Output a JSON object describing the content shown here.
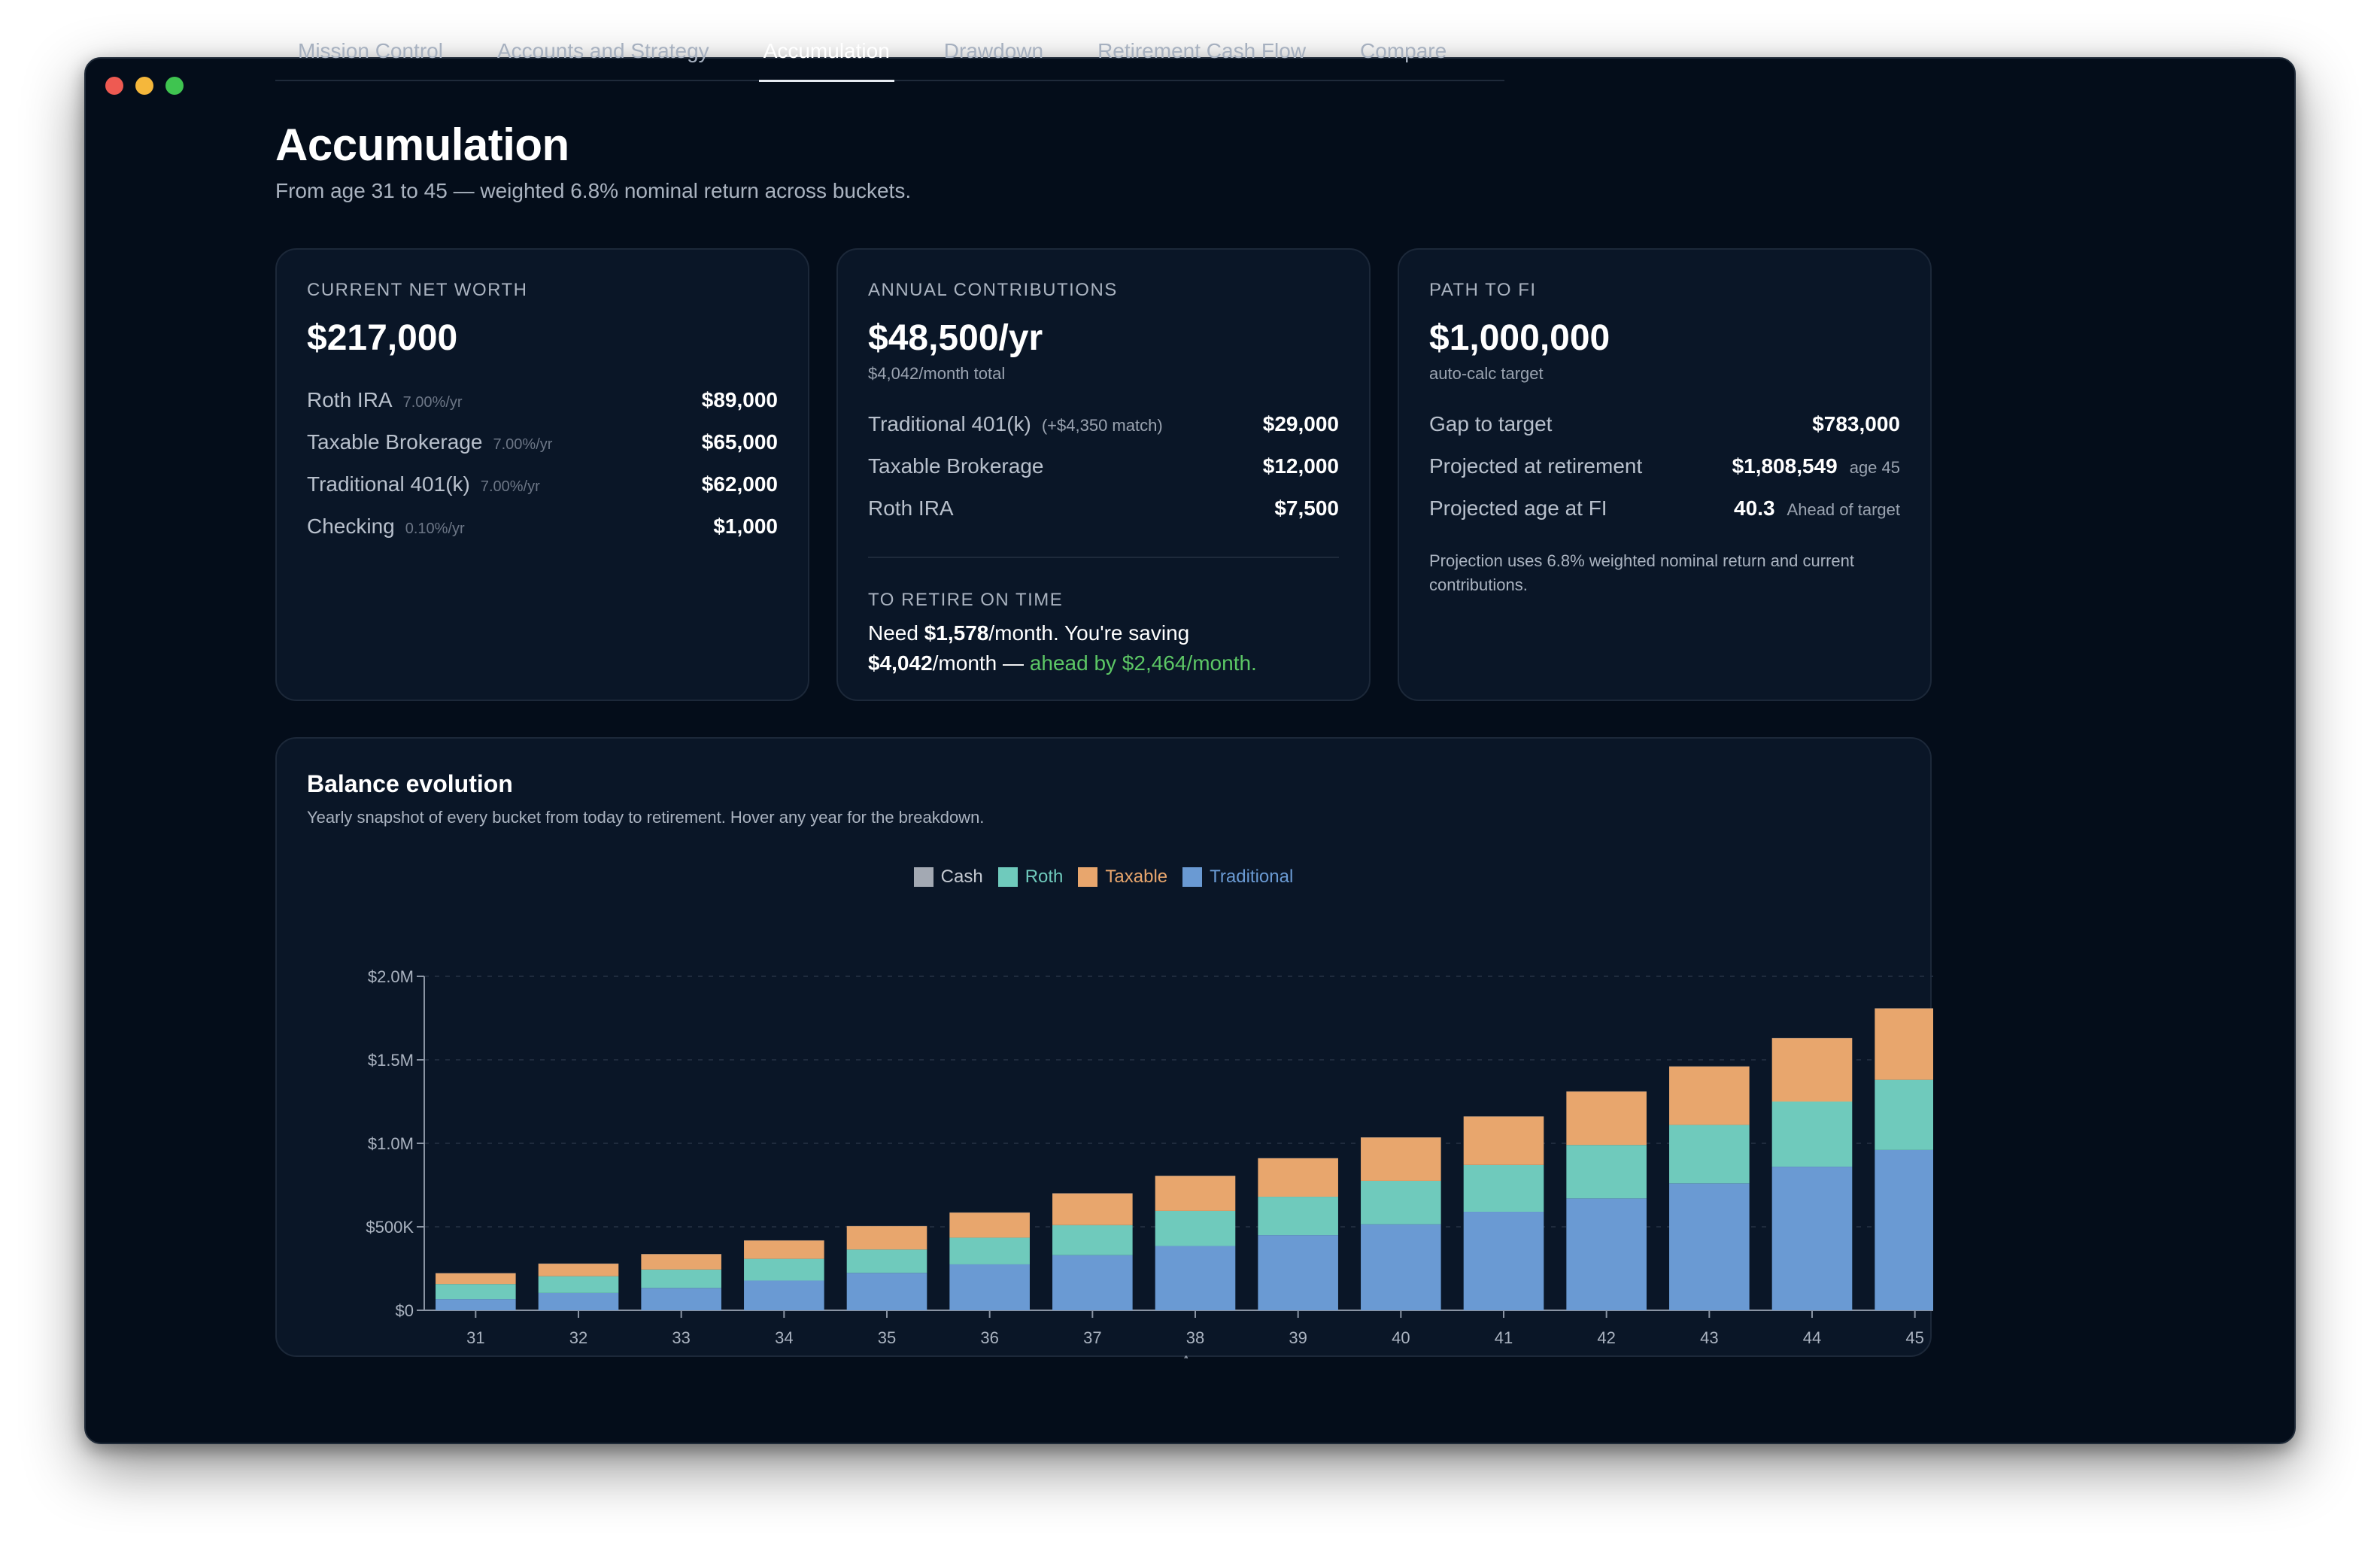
{
  "nav": {
    "tabs": [
      {
        "label": "Mission Control",
        "active": false
      },
      {
        "label": "Accounts and Strategy",
        "active": false
      },
      {
        "label": "Accumulation",
        "active": true
      },
      {
        "label": "Drawdown",
        "active": false
      },
      {
        "label": "Retirement Cash Flow",
        "active": false
      },
      {
        "label": "Compare",
        "active": false
      }
    ]
  },
  "header": {
    "title": "Accumulation",
    "subtitle": "From age 31 to 45 — weighted 6.8% nominal return across buckets."
  },
  "net_worth": {
    "label": "CURRENT NET WORTH",
    "value": "$217,000",
    "rows": [
      {
        "name": "Roth IRA",
        "rate": "7.00%/yr",
        "amount": "$89,000"
      },
      {
        "name": "Taxable Brokerage",
        "rate": "7.00%/yr",
        "amount": "$65,000"
      },
      {
        "name": "Traditional 401(k)",
        "rate": "7.00%/yr",
        "amount": "$62,000"
      },
      {
        "name": "Checking",
        "rate": "0.10%/yr",
        "amount": "$1,000"
      }
    ]
  },
  "contributions": {
    "label": "ANNUAL CONTRIBUTIONS",
    "value": "$48,500/yr",
    "sub": "$4,042/month total",
    "rows": [
      {
        "name": "Traditional 401(k)",
        "note": "(+$4,350 match)",
        "amount": "$29,000"
      },
      {
        "name": "Taxable Brokerage",
        "note": "",
        "amount": "$12,000"
      },
      {
        "name": "Roth IRA",
        "note": "",
        "amount": "$7,500"
      }
    ],
    "retire_label": "TO RETIRE ON TIME",
    "retire_need_prefix": "Need ",
    "retire_need_amount": "$1,578",
    "retire_need_suffix": "/month. You're saving",
    "retire_saving_amount": "$4,042",
    "retire_saving_suffix": "/month — ",
    "retire_ahead": "ahead by $2,464/month."
  },
  "path_to_fi": {
    "label": "PATH TO FI",
    "value": "$1,000,000",
    "sub": "auto-calc target",
    "rows": [
      {
        "name": "Gap to target",
        "amount": "$783,000",
        "note": ""
      },
      {
        "name": "Projected at retirement",
        "amount": "$1,808,549",
        "note": "age 45"
      },
      {
        "name": "Projected age at FI",
        "amount": "40.3",
        "note": "Ahead of target"
      }
    ],
    "note": "Projection uses 6.8% weighted nominal return and current contributions."
  },
  "balance_chart": {
    "title": "Balance evolution",
    "subtitle": "Yearly snapshot of every bucket from today to retirement. Hover any year for the breakdown."
  },
  "colors": {
    "cash": "#a3a9b3",
    "roth": "#6fcabc",
    "taxable": "#e8a66d",
    "traditional": "#6a9ad3"
  },
  "chart_data": {
    "type": "bar",
    "stacked": true,
    "xlabel": "Age",
    "ylabel": "",
    "ylim": [
      0,
      2000000
    ],
    "y_ticks": [
      0,
      500000,
      1000000,
      1500000,
      2000000
    ],
    "y_tick_labels": [
      "$0",
      "$500K",
      "$1.0M",
      "$1.5M",
      "$2.0M"
    ],
    "grid": true,
    "legend": "top-center",
    "categories": [
      "31",
      "32",
      "33",
      "34",
      "35",
      "36",
      "37",
      "38",
      "39",
      "40",
      "41",
      "42",
      "43",
      "44",
      "45"
    ],
    "series": [
      {
        "name": "Traditional",
        "color": "#6a9ad3",
        "values": [
          67000,
          104000,
          134000,
          178000,
          224000,
          275000,
          330000,
          385000,
          450000,
          515000,
          590000,
          670000,
          760000,
          860000,
          960000
        ]
      },
      {
        "name": "Roth",
        "color": "#6fcabc",
        "values": [
          90000,
          100000,
          110000,
          130000,
          140000,
          160000,
          180000,
          210000,
          230000,
          260000,
          280000,
          320000,
          350000,
          390000,
          420000
        ]
      },
      {
        "name": "Taxable",
        "color": "#e8a66d",
        "values": [
          65000,
          75000,
          92000,
          110000,
          140000,
          150000,
          190000,
          210000,
          230000,
          260000,
          290000,
          320000,
          350000,
          380000,
          428000
        ]
      },
      {
        "name": "Cash",
        "color": "#a3a9b3",
        "values": [
          1000,
          1000,
          1000,
          1000,
          1000,
          1000,
          1000,
          1000,
          1000,
          1000,
          1000,
          1000,
          1000,
          1000,
          1000
        ]
      }
    ]
  }
}
